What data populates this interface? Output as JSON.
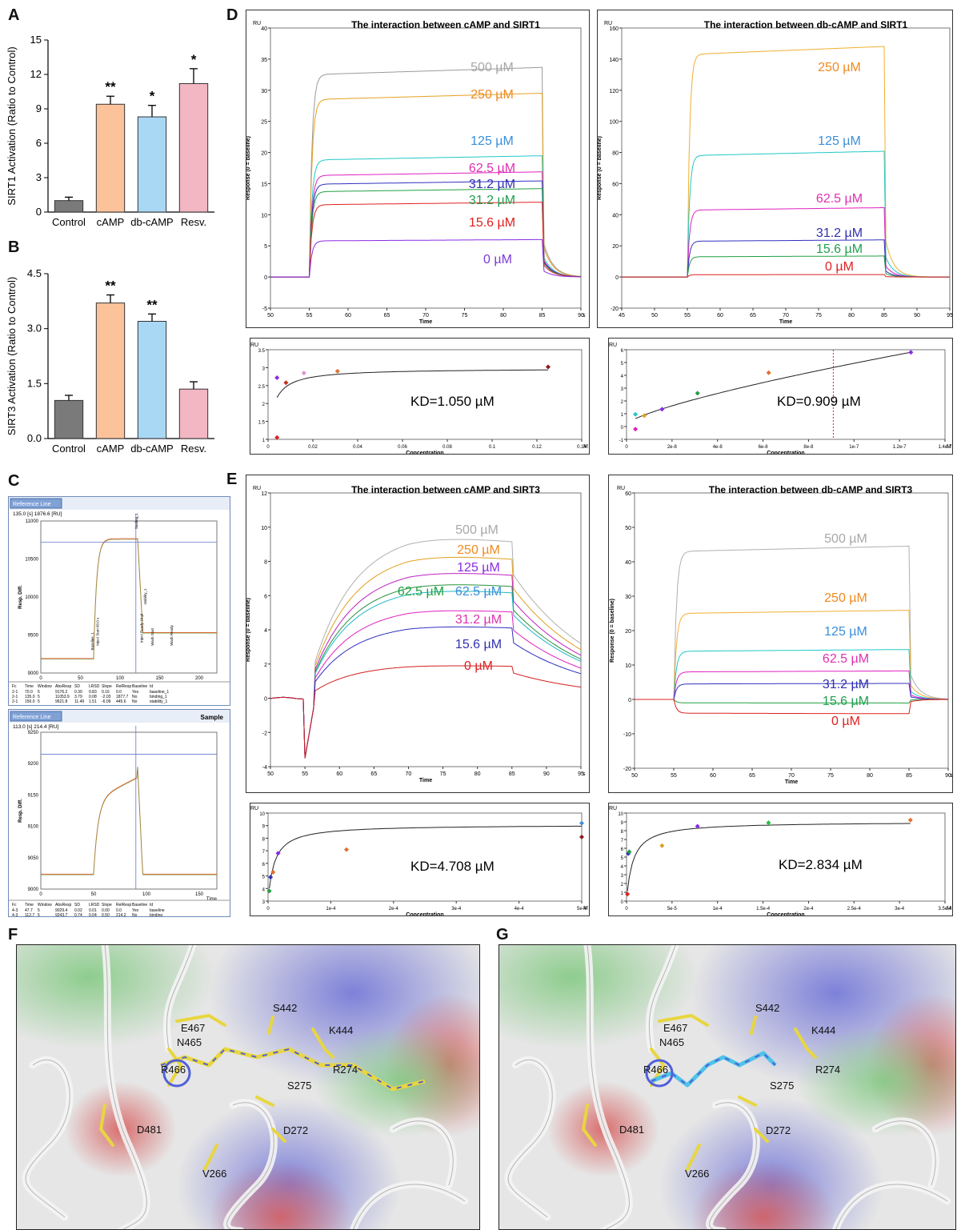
{
  "panel_labels": {
    "a": "A",
    "b": "B",
    "c": "C",
    "d": "D",
    "e": "E",
    "f": "F",
    "g": "G"
  },
  "chart_data": [
    {
      "id": "A",
      "type": "bar",
      "ylabel": "SIRT1 Activation (Ratio to Control)",
      "ylim": [
        0,
        15
      ],
      "yticks": [
        "0",
        "3",
        "6",
        "9",
        "12",
        "15"
      ],
      "categories": [
        "Control",
        "cAMP",
        "db-cAMP",
        "Resv."
      ],
      "values": [
        1.0,
        9.4,
        8.3,
        11.2
      ],
      "errors": [
        0.3,
        0.7,
        1.0,
        1.3
      ],
      "significance": [
        "",
        "**",
        "*",
        "*"
      ],
      "colors": [
        "#7a7a7a",
        "#fcc39a",
        "#a9d8f5",
        "#f3b6c3"
      ]
    },
    {
      "id": "B",
      "type": "bar",
      "ylabel": "SIRT3 Activation (Ratio to Control)",
      "ylim": [
        0,
        4.5
      ],
      "yticks": [
        "0.0",
        "1.5",
        "3.0",
        "4.5"
      ],
      "categories": [
        "Control",
        "cAMP",
        "db-cAMP",
        "Resv."
      ],
      "values": [
        1.04,
        3.7,
        3.2,
        1.35
      ],
      "errors": [
        0.14,
        0.22,
        0.2,
        0.2
      ],
      "significance": [
        "",
        "**",
        "**",
        ""
      ],
      "colors": [
        "#7a7a7a",
        "#fcc39a",
        "#a9d8f5",
        "#f3b6c3"
      ]
    },
    {
      "id": "C1",
      "type": "line",
      "header": "Reference Line",
      "readout": "135.0 [s] 1876.6 [RU]",
      "ylabel": "Resp. Diff.",
      "yticks": [
        "9000",
        "9500",
        "10000",
        "10500",
        "11000"
      ],
      "xticks": [
        "0",
        "50",
        "100",
        "150",
        "200"
      ],
      "annotations": [
        "Baseline_1",
        "Inject Start 60.0 s",
        "binding_1",
        "Inject Ready 10 µl",
        "stability_1",
        "Wash Start",
        "Wash Ready"
      ],
      "table_header": [
        "Fc",
        "Time",
        "Window",
        "AbsResp",
        "SD",
        "LRSD",
        "Slope",
        "RelResp",
        "Baseline",
        "Id"
      ],
      "table_rows": [
        [
          "2-1",
          "70.0",
          "5",
          "9176.2",
          "0.30",
          "0.83",
          "0.16",
          "0.0",
          "Yes",
          "baseline_1"
        ],
        [
          "2-1",
          "135.0",
          "5",
          "11053.9",
          "3.79",
          "0.08",
          "-2.03",
          "1877.7",
          "No",
          "binding_1"
        ],
        [
          "2-1",
          "150.0",
          "5",
          "9621.8",
          "11.49",
          "1.51",
          "-6.09",
          "445.6",
          "No",
          "stability_1"
        ]
      ]
    },
    {
      "id": "C2",
      "type": "line",
      "header": "Reference Line",
      "readout": "113.0 [s] 214.4 [RU]",
      "title": "Sample",
      "ylabel": "Resp. Diff.",
      "yticks": [
        "9000",
        "9050",
        "9100",
        "9150",
        "9200",
        "9250"
      ],
      "xticks": [
        "0",
        "50",
        "100",
        "150"
      ],
      "xlabel": "Time",
      "table_header": [
        "Fc",
        "Time",
        "Window",
        "AbsResp",
        "SD",
        "LRSD",
        "Slope",
        "RelResp",
        "Baseline",
        "Id"
      ],
      "table_rows": [
        [
          "4-3",
          "47.7",
          "5",
          "9029.4",
          "0.02",
          "0.01",
          "0.00",
          "0.0",
          "Yes",
          "baseline"
        ],
        [
          "4-3",
          "112.7",
          "5",
          "9243.7",
          "0.74",
          "0.04",
          "0.50",
          "214.2",
          "No",
          "binding"
        ]
      ]
    },
    {
      "id": "D1",
      "type": "line",
      "title": "The interaction between cAMP and SIRT1",
      "unit": "RU",
      "ylabel": "Response (0 = baseline)",
      "xlabel": "Time",
      "xunit": "s",
      "xlim": [
        50,
        90
      ],
      "ylim": [
        -5,
        40
      ],
      "xticks": [
        "50",
        "55",
        "60",
        "65",
        "70",
        "75",
        "80",
        "85",
        "90"
      ],
      "yticks": [
        "-5",
        "0",
        "5",
        "10",
        "15",
        "20",
        "25",
        "30",
        "35",
        "40"
      ],
      "series": [
        {
          "name": "500 µM",
          "level": 32.5,
          "color": "#9a9a9a"
        },
        {
          "name": "250 µM",
          "level": 28.5,
          "color": "#e6a020"
        },
        {
          "name": "125 µM",
          "level": 18.8,
          "color": "#22c8c8"
        },
        {
          "name": "62.5 µM",
          "level": 16.3,
          "color": "#e020c0"
        },
        {
          "name": "31.2 µM",
          "level": 14.9,
          "color": "#3030c0"
        },
        {
          "name": "31.2 µM",
          "level": 13.7,
          "color": "#20a040"
        },
        {
          "name": "15.6 µM",
          "level": 11.6,
          "color": "#e02020"
        },
        {
          "name": "0 µM",
          "level": 5.8,
          "color": "#8a2be2"
        }
      ],
      "label_colors": [
        "#a8a8a8",
        "#f08a20",
        "#3a8fd8",
        "#e030b0",
        "#3030b0",
        "#20a050",
        "#e02020",
        "#7a3ad8"
      ]
    },
    {
      "id": "D2",
      "type": "line",
      "title": "The interaction between db-cAMP and SIRT1",
      "unit": "RU",
      "ylabel": "Response (0 = baseline)",
      "xlabel": "Time",
      "xunit": "s",
      "xlim": [
        45,
        95
      ],
      "ylim": [
        -20,
        160
      ],
      "xticks": [
        "45",
        "50",
        "55",
        "60",
        "65",
        "70",
        "75",
        "80",
        "85",
        "90",
        "95"
      ],
      "yticks": [
        "-20",
        "0",
        "20",
        "40",
        "60",
        "80",
        "100",
        "120",
        "140",
        "160"
      ],
      "series": [
        {
          "name": "250 µM",
          "level": 143,
          "color": "#f0b030"
        },
        {
          "name": "125 µM",
          "level": 78,
          "color": "#20c8c8"
        },
        {
          "name": "62.5 µM",
          "level": 43,
          "color": "#e020c0"
        },
        {
          "name": "31.2 µM",
          "level": 23,
          "color": "#3030c0"
        },
        {
          "name": "15.6 µM",
          "level": 13,
          "color": "#20a040"
        },
        {
          "name": "0 µM",
          "level": 1.5,
          "color": "#e02020"
        }
      ],
      "label_colors": [
        "#f08a20",
        "#3a8fd8",
        "#e030b0",
        "#3030b0",
        "#20a050",
        "#e02020"
      ]
    },
    {
      "id": "D3",
      "type": "scatter",
      "unit": "RU",
      "ylabel": "Response",
      "xlabel": "Concentration",
      "xunit": "M",
      "kd": "KD=1.050 µM",
      "xlim": [
        0,
        0.14
      ],
      "ylim": [
        1,
        3.5
      ],
      "xticks": [
        "0",
        "0.02",
        "0.04",
        "0.06",
        "0.08",
        "0.1",
        "0.12",
        "0.14"
      ],
      "yticks": [
        "1",
        "1.5",
        "2",
        "2.5",
        "3",
        "3.5"
      ],
      "points": [
        {
          "x": 0.004,
          "y": 1.05,
          "c": "#e02020"
        },
        {
          "x": 0.004,
          "y": 2.72,
          "c": "#8a2be2"
        },
        {
          "x": 0.008,
          "y": 2.58,
          "c": "#c03020"
        },
        {
          "x": 0.016,
          "y": 2.85,
          "c": "#e090d0"
        },
        {
          "x": 0.031,
          "y": 2.9,
          "c": "#e07030"
        },
        {
          "x": 0.125,
          "y": 3.02,
          "c": "#8b1a1a"
        }
      ]
    },
    {
      "id": "D4",
      "type": "scatter",
      "unit": "RU",
      "ylabel": "Response",
      "xlabel": "Concentration",
      "xunit": "M",
      "kd": "KD=0.909 µM",
      "xlim": [
        0,
        1.4e-07
      ],
      "ylim": [
        -1,
        6
      ],
      "xticks": [
        "0",
        "2e-8",
        "4e-8",
        "6e-8",
        "8e-8",
        "1e-7",
        "1.2e-7",
        "1.4e-7"
      ],
      "yticks": [
        "-1",
        "0",
        "1",
        "2",
        "3",
        "4",
        "5",
        "6"
      ],
      "points": [
        {
          "x": 3.9e-09,
          "y": -0.2,
          "c": "#e020c0"
        },
        {
          "x": 3.9e-09,
          "y": 0.95,
          "c": "#20c8c8"
        },
        {
          "x": 7.8e-09,
          "y": 0.85,
          "c": "#e0a020"
        },
        {
          "x": 1.56e-08,
          "y": 1.35,
          "c": "#8a2be2"
        },
        {
          "x": 3.12e-08,
          "y": 2.6,
          "c": "#20a040"
        },
        {
          "x": 6.25e-08,
          "y": 4.2,
          "c": "#e07030"
        },
        {
          "x": 1.25e-07,
          "y": 5.8,
          "c": "#8a2be2"
        }
      ]
    },
    {
      "id": "E1",
      "type": "line",
      "title": "The interaction between cAMP and SIRT3",
      "unit": "RU",
      "ylabel": "Response (0 = baseline)",
      "xlabel": "Time",
      "xunit": "s",
      "xlim": [
        50,
        95
      ],
      "ylim": [
        -4,
        12
      ],
      "xticks": [
        "50",
        "55",
        "60",
        "65",
        "70",
        "75",
        "80",
        "85",
        "90",
        "95"
      ],
      "yticks": [
        "-4",
        "-2",
        "0",
        "2",
        "4",
        "6",
        "8",
        "10",
        "12"
      ],
      "series": [
        {
          "name": "500 µM",
          "level": 9.8,
          "color": "#b0b0b0"
        },
        {
          "name": "250 µM",
          "level": 8.7,
          "color": "#e0a020"
        },
        {
          "name": "125 µM",
          "level": 7.7,
          "color": "#c020c0"
        },
        {
          "name": "62.5 µM",
          "level": 7.0,
          "color": "#2a9040"
        },
        {
          "name": "62.5 µM",
          "level": 6.6,
          "color": "#20b8c8"
        },
        {
          "name": "31.2 µM",
          "level": 5.4,
          "color": "#e020c0"
        },
        {
          "name": "15.6 µM",
          "level": 4.4,
          "color": "#3030c0"
        },
        {
          "name": "0 µM",
          "level": 2.0,
          "color": "#d02020"
        }
      ],
      "label_colors": [
        "#a8a8a8",
        "#f08a20",
        "#8a2be2",
        "#20a040",
        "#3a8fd8",
        "#e030b0",
        "#3030b0",
        "#e02020"
      ]
    },
    {
      "id": "E2",
      "type": "line",
      "title": "The interaction between db-cAMP and SIRT3",
      "unit": "RU",
      "ylabel": "Response (0 = baseline)",
      "xlabel": "Time",
      "xunit": "s",
      "xlim": [
        50,
        90
      ],
      "ylim": [
        -20,
        60
      ],
      "xticks": [
        "50",
        "55",
        "60",
        "65",
        "70",
        "75",
        "80",
        "85",
        "90"
      ],
      "yticks": [
        "-20",
        "-10",
        "0",
        "10",
        "20",
        "30",
        "40",
        "50",
        "60"
      ],
      "series": [
        {
          "name": "500 µM",
          "level": 43,
          "color": "#b0b0b0"
        },
        {
          "name": "250 µM",
          "level": 25,
          "color": "#f0b030"
        },
        {
          "name": "125 µM",
          "level": 14,
          "color": "#20c8c8"
        },
        {
          "name": "62.5 µM",
          "level": 8,
          "color": "#e020c0"
        },
        {
          "name": "31.2 µM",
          "level": 4.5,
          "color": "#3030c0"
        },
        {
          "name": "15.6 µM",
          "level": -1,
          "color": "#20a040"
        },
        {
          "name": "0 µM",
          "level": -4,
          "color": "#e02020"
        }
      ],
      "label_colors": [
        "#a8a8a8",
        "#f08a20",
        "#3a8fd8",
        "#e030b0",
        "#3030b0",
        "#20a050",
        "#e02020"
      ]
    },
    {
      "id": "E3",
      "type": "scatter",
      "unit": "RU",
      "ylabel": "Response",
      "xlabel": "Concentration",
      "xunit": "M",
      "kd": "KD=4.708 µM",
      "xlim": [
        0,
        0.0005
      ],
      "ylim": [
        3,
        10
      ],
      "xticks": [
        "0",
        "1e-4",
        "2e-4",
        "3e-4",
        "4e-4",
        "5e-4"
      ],
      "yticks": [
        "3",
        "4",
        "5",
        "6",
        "7",
        "8",
        "9",
        "10"
      ],
      "points": [
        {
          "x": 2e-06,
          "y": 3.8,
          "c": "#20a040"
        },
        {
          "x": 4e-06,
          "y": 4.9,
          "c": "#3030c0"
        },
        {
          "x": 8e-06,
          "y": 5.3,
          "c": "#e07030"
        },
        {
          "x": 1.6e-05,
          "y": 6.8,
          "c": "#8a2be2"
        },
        {
          "x": 0.000125,
          "y": 7.1,
          "c": "#e07030"
        },
        {
          "x": 0.0005,
          "y": 8.1,
          "c": "#8b1a1a"
        },
        {
          "x": 0.0005,
          "y": 9.2,
          "c": "#3a8fd8"
        }
      ]
    },
    {
      "id": "E4",
      "type": "scatter",
      "unit": "RU",
      "ylabel": "Response",
      "xlabel": "Concentration",
      "xunit": "M",
      "kd": "KD=2.834 µM",
      "xlim": [
        0,
        0.00035
      ],
      "ylim": [
        0,
        10
      ],
      "xticks": [
        "0",
        "5e-5",
        "1e-4",
        "1.5e-4",
        "2e-4",
        "2.5e-4",
        "3e-4",
        "3.5e-4"
      ],
      "yticks": [
        "0",
        "1",
        "2",
        "3",
        "4",
        "5",
        "6",
        "7",
        "8",
        "9",
        "10"
      ],
      "points": [
        {
          "x": 1e-06,
          "y": 0.8,
          "c": "#e02020"
        },
        {
          "x": 2e-06,
          "y": 5.4,
          "c": "#3030c0"
        },
        {
          "x": 3e-06,
          "y": 5.6,
          "c": "#20a040"
        },
        {
          "x": 3.9e-05,
          "y": 6.3,
          "c": "#e0a020"
        },
        {
          "x": 7.8e-05,
          "y": 8.5,
          "c": "#8a2be2"
        },
        {
          "x": 0.000156,
          "y": 8.9,
          "c": "#20c040"
        },
        {
          "x": 0.000312,
          "y": 9.2,
          "c": "#e07030"
        }
      ]
    }
  ],
  "molecular": {
    "F": {
      "labels": [
        "E467",
        "S442",
        "K444",
        "N465",
        "R466",
        "R274",
        "S275",
        "D481",
        "D272",
        "V266"
      ]
    },
    "G": {
      "labels": [
        "E467",
        "S442",
        "K444",
        "N465",
        "R466",
        "R274",
        "S275",
        "D481",
        "D272",
        "V266"
      ]
    }
  }
}
